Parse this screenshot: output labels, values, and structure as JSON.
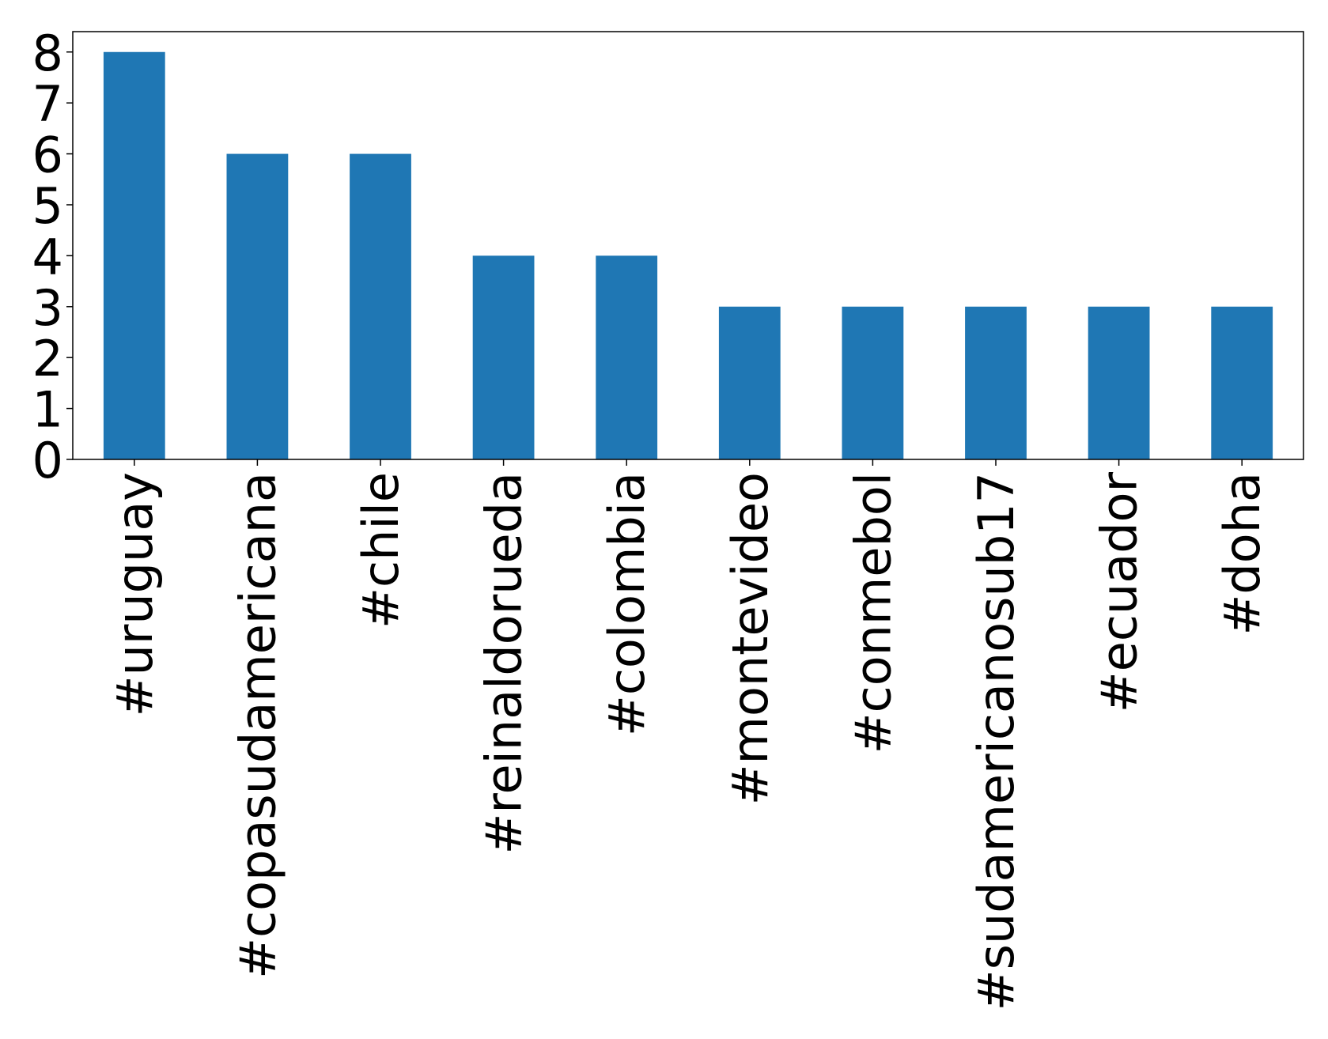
{
  "chart_data": {
    "type": "bar",
    "categories": [
      "#uruguay",
      "#copasudamericana",
      "#chile",
      "#reinaldorueda",
      "#colombia",
      "#montevideo",
      "#conmebol",
      "#sudamericanosub17",
      "#ecuador",
      "#doha"
    ],
    "values": [
      8,
      6,
      6,
      4,
      4,
      3,
      3,
      3,
      3,
      3
    ],
    "color": "#1f77b4",
    "ylim": [
      0,
      8.4
    ],
    "yticks": [
      0,
      1,
      2,
      3,
      4,
      5,
      6,
      7,
      8
    ],
    "grid": false
  }
}
